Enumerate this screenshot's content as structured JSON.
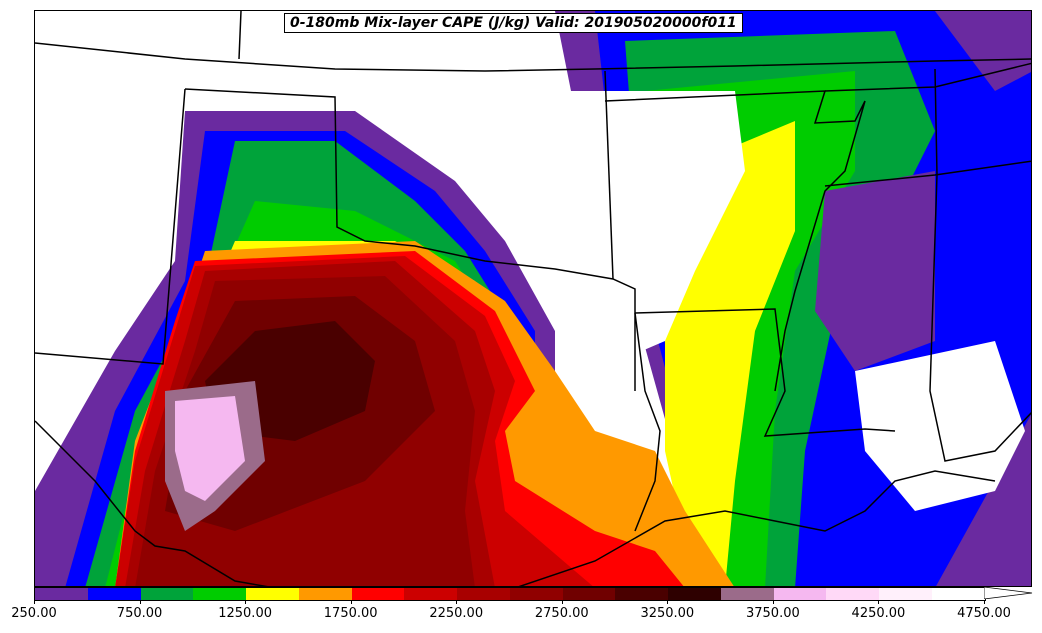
{
  "title": "0-180mb Mix-layer CAPE (J/kg) Valid: 201905020000f011",
  "colorbar": {
    "levels": [
      250,
      500,
      750,
      1000,
      1250,
      1500,
      1750,
      2000,
      2250,
      2500,
      2750,
      3000,
      3250,
      3500,
      3750,
      4000,
      4250,
      4500,
      4750
    ],
    "colors": [
      "#6a2aa0",
      "#0000ff",
      "#00a33a",
      "#00cc00",
      "#ffff00",
      "#ff9900",
      "#ff0000",
      "#cc0000",
      "#a80000",
      "#900000",
      "#700000",
      "#4a0000",
      "#2e0000",
      "#9b6b8a",
      "#f5b8f0",
      "#ffd9f7",
      "#fff0fb",
      "#ffffff"
    ],
    "tick_labels": [
      "250.00",
      "750.00",
      "1250.00",
      "1750.00",
      "2250.00",
      "2750.00",
      "3250.00",
      "3750.00",
      "4250.00",
      "4750.00"
    ],
    "extend": "max"
  },
  "map": {
    "region": "South-central United States",
    "variable": "0-180mb Mix-layer CAPE",
    "units": "J/kg",
    "boundaries": "state borders and coastline"
  }
}
